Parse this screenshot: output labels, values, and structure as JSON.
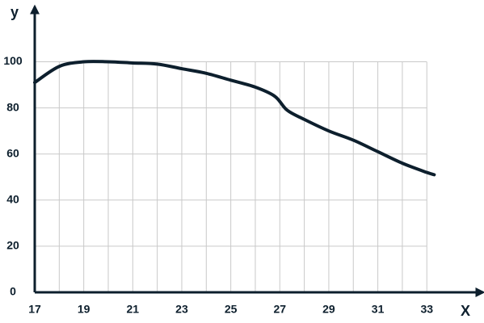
{
  "chart_data": {
    "type": "line",
    "x_label": "X",
    "y_label": "y",
    "x": [
      17,
      18,
      19,
      20,
      21,
      22,
      23,
      24,
      25,
      26,
      26.8,
      27.3,
      28,
      29,
      30,
      31,
      32,
      33,
      33.3
    ],
    "series": [
      {
        "color": "#0d1f2d",
        "values": [
          91,
          98,
          100,
          100,
          99.5,
          99,
          97,
          95,
          92,
          89,
          85,
          79,
          75,
          70,
          66,
          61,
          56,
          52,
          51
        ]
      }
    ],
    "xlim": [
      17,
      35.3
    ],
    "ylim": [
      0,
      124
    ],
    "xticks": [
      17,
      19,
      21,
      23,
      25,
      27,
      29,
      31,
      33
    ],
    "yticks": [
      0,
      20,
      40,
      60,
      80,
      100
    ],
    "grid": true
  }
}
